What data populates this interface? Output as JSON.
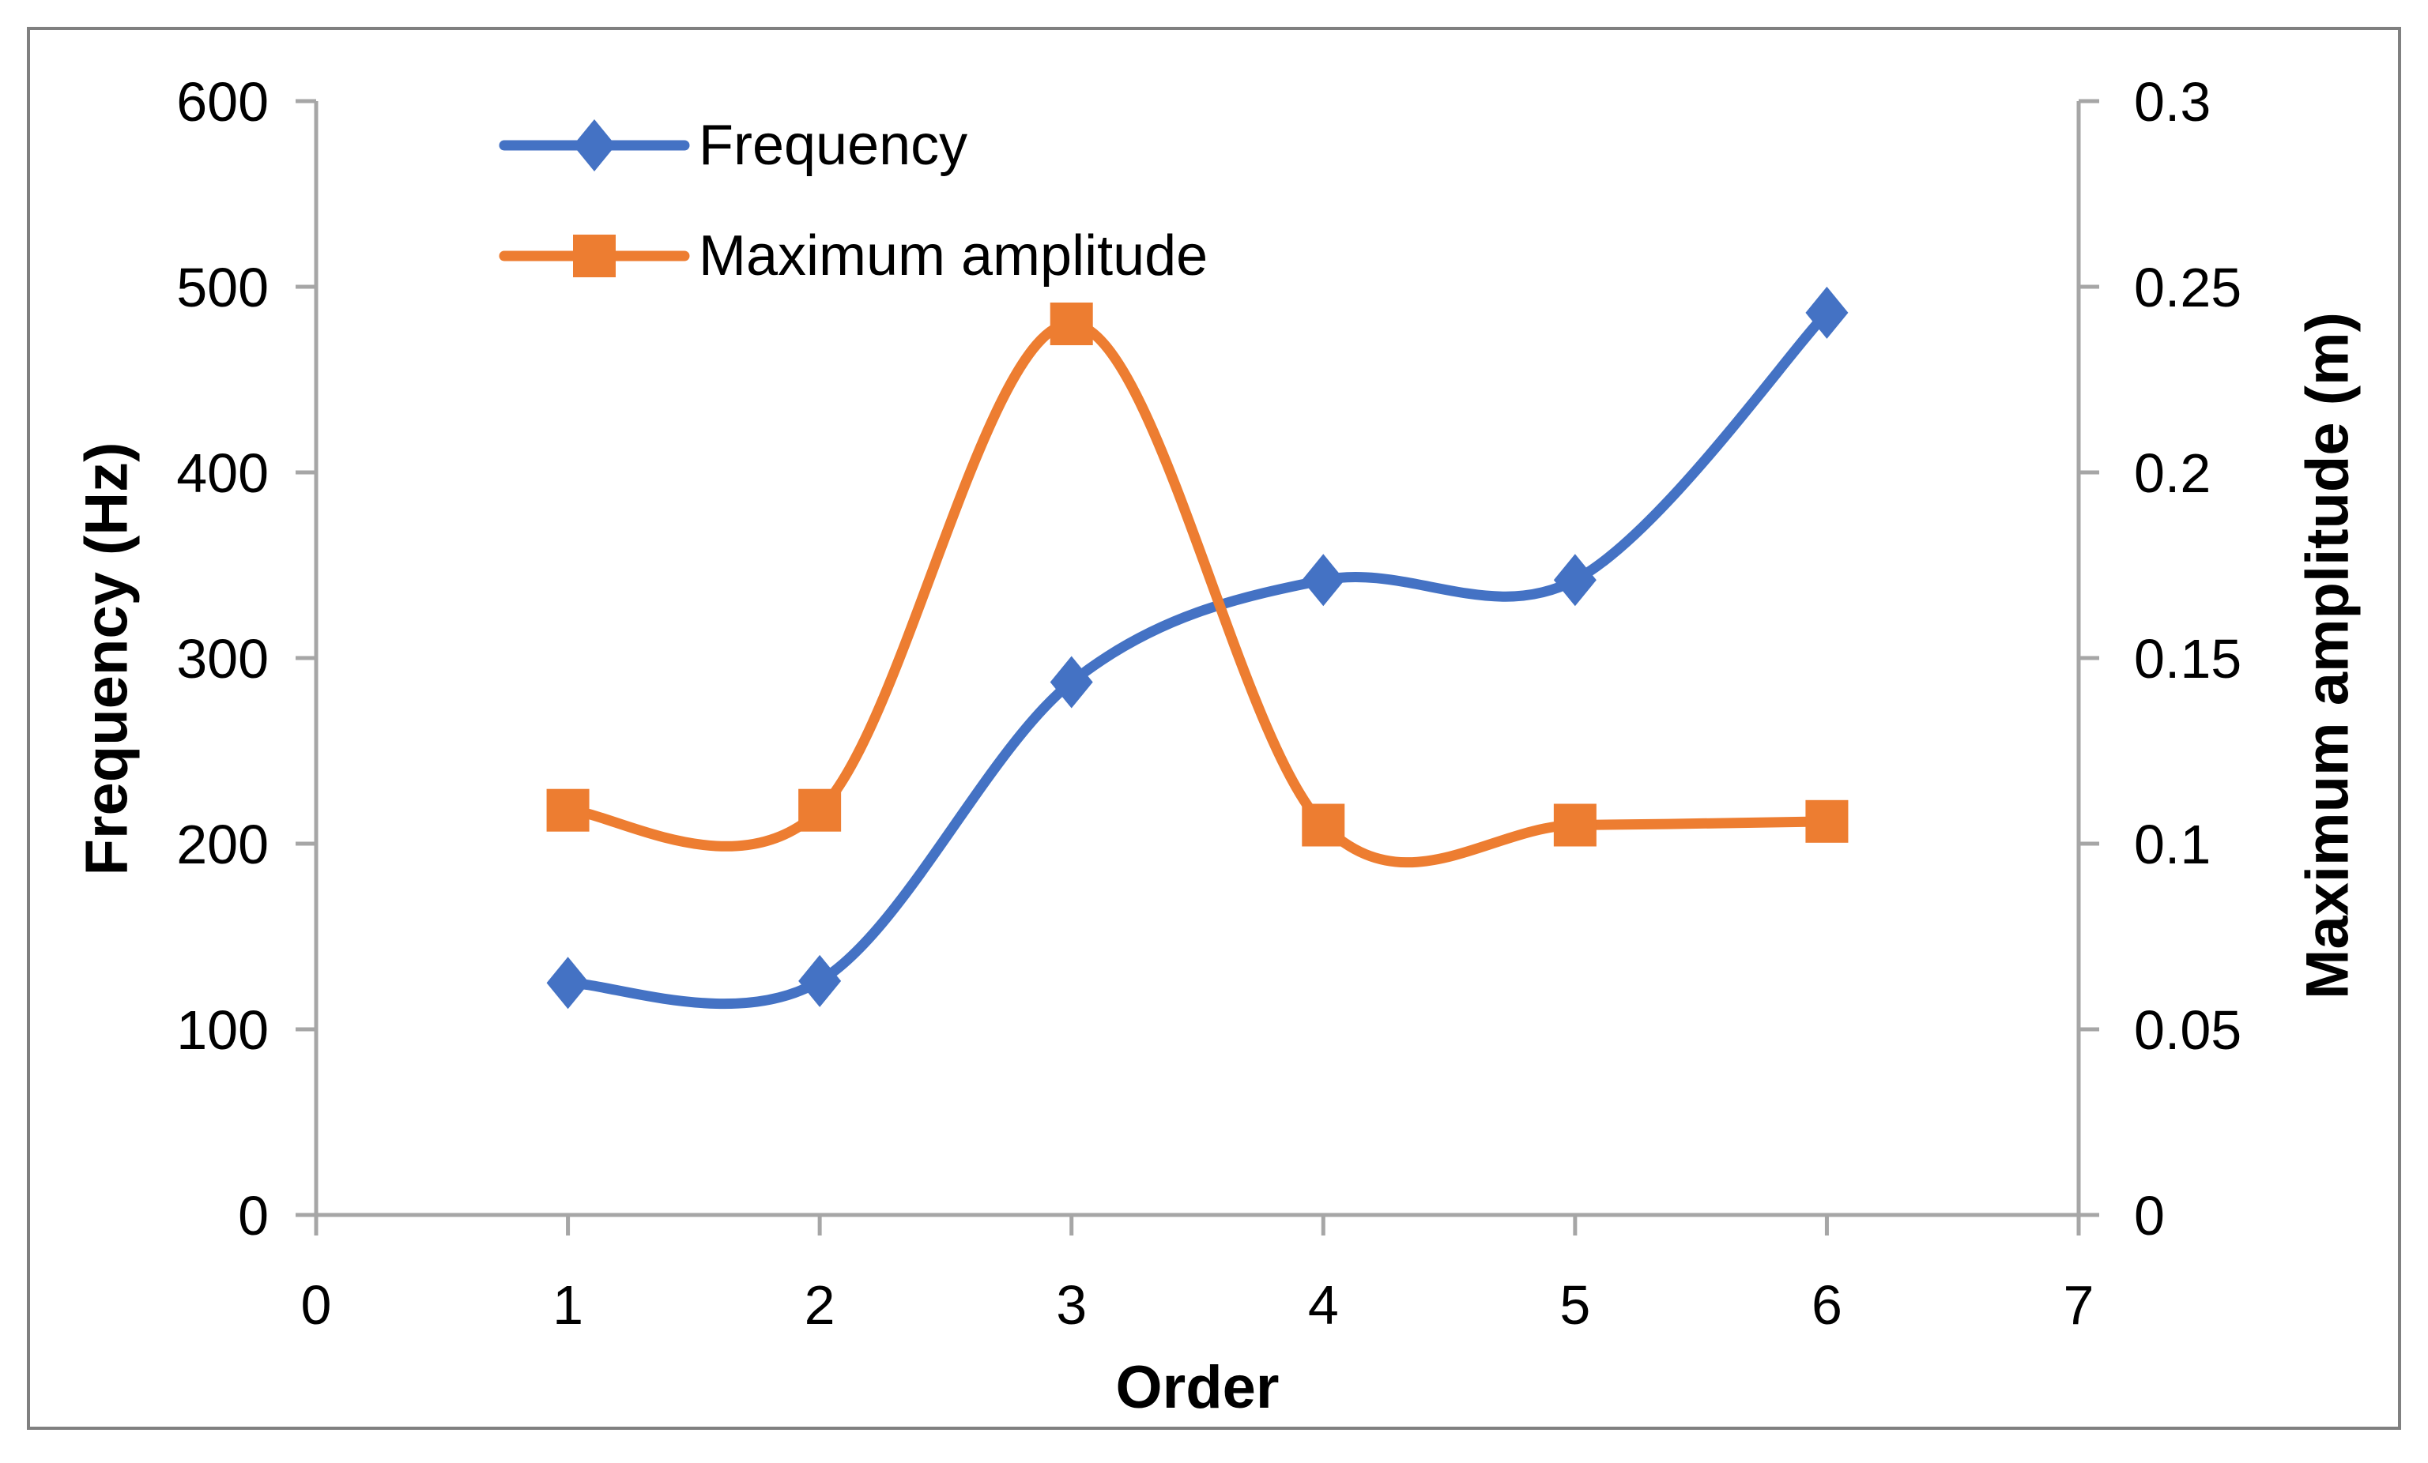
{
  "chart_data": {
    "type": "line",
    "smooth": true,
    "grid": false,
    "legend_position": "top-left-inside",
    "background": "#FFFFFF",
    "border_color": "#808080",
    "axis_line_color": "#A6A6A6",
    "text_color": "#000000",
    "xlabel": "Order",
    "xlim": [
      0,
      7
    ],
    "x_tick_labels": [
      "0",
      "1",
      "2",
      "3",
      "4",
      "5",
      "6",
      "7"
    ],
    "x": [
      1,
      2,
      3,
      4,
      5,
      6
    ],
    "series": [
      {
        "name": "Frequency",
        "axis": "left",
        "marker": "diamond",
        "color": "#4472C4",
        "values": [
          125,
          126,
          287,
          342,
          342,
          486
        ]
      },
      {
        "name": "Maximum amplitude",
        "axis": "right",
        "marker": "square",
        "color": "#ED7D31",
        "values": [
          0.109,
          0.109,
          0.24,
          0.105,
          0.105,
          0.106
        ]
      }
    ],
    "left_axis": {
      "label": "Frequency (Hz)",
      "lim": [
        0,
        600
      ],
      "ticks": [
        0,
        100,
        200,
        300,
        400,
        500,
        600
      ],
      "tick_labels": [
        "0",
        "100",
        "200",
        "300",
        "400",
        "500",
        "600"
      ]
    },
    "right_axis": {
      "label": "Maximum amplitude (m)",
      "lim": [
        0,
        0.3
      ],
      "ticks": [
        0,
        0.05,
        0.1,
        0.15,
        0.2,
        0.25,
        0.3
      ],
      "tick_labels": [
        "0",
        "0.05",
        "0.1",
        "0.15",
        "0.2",
        "0.25",
        "0.3"
      ]
    }
  }
}
